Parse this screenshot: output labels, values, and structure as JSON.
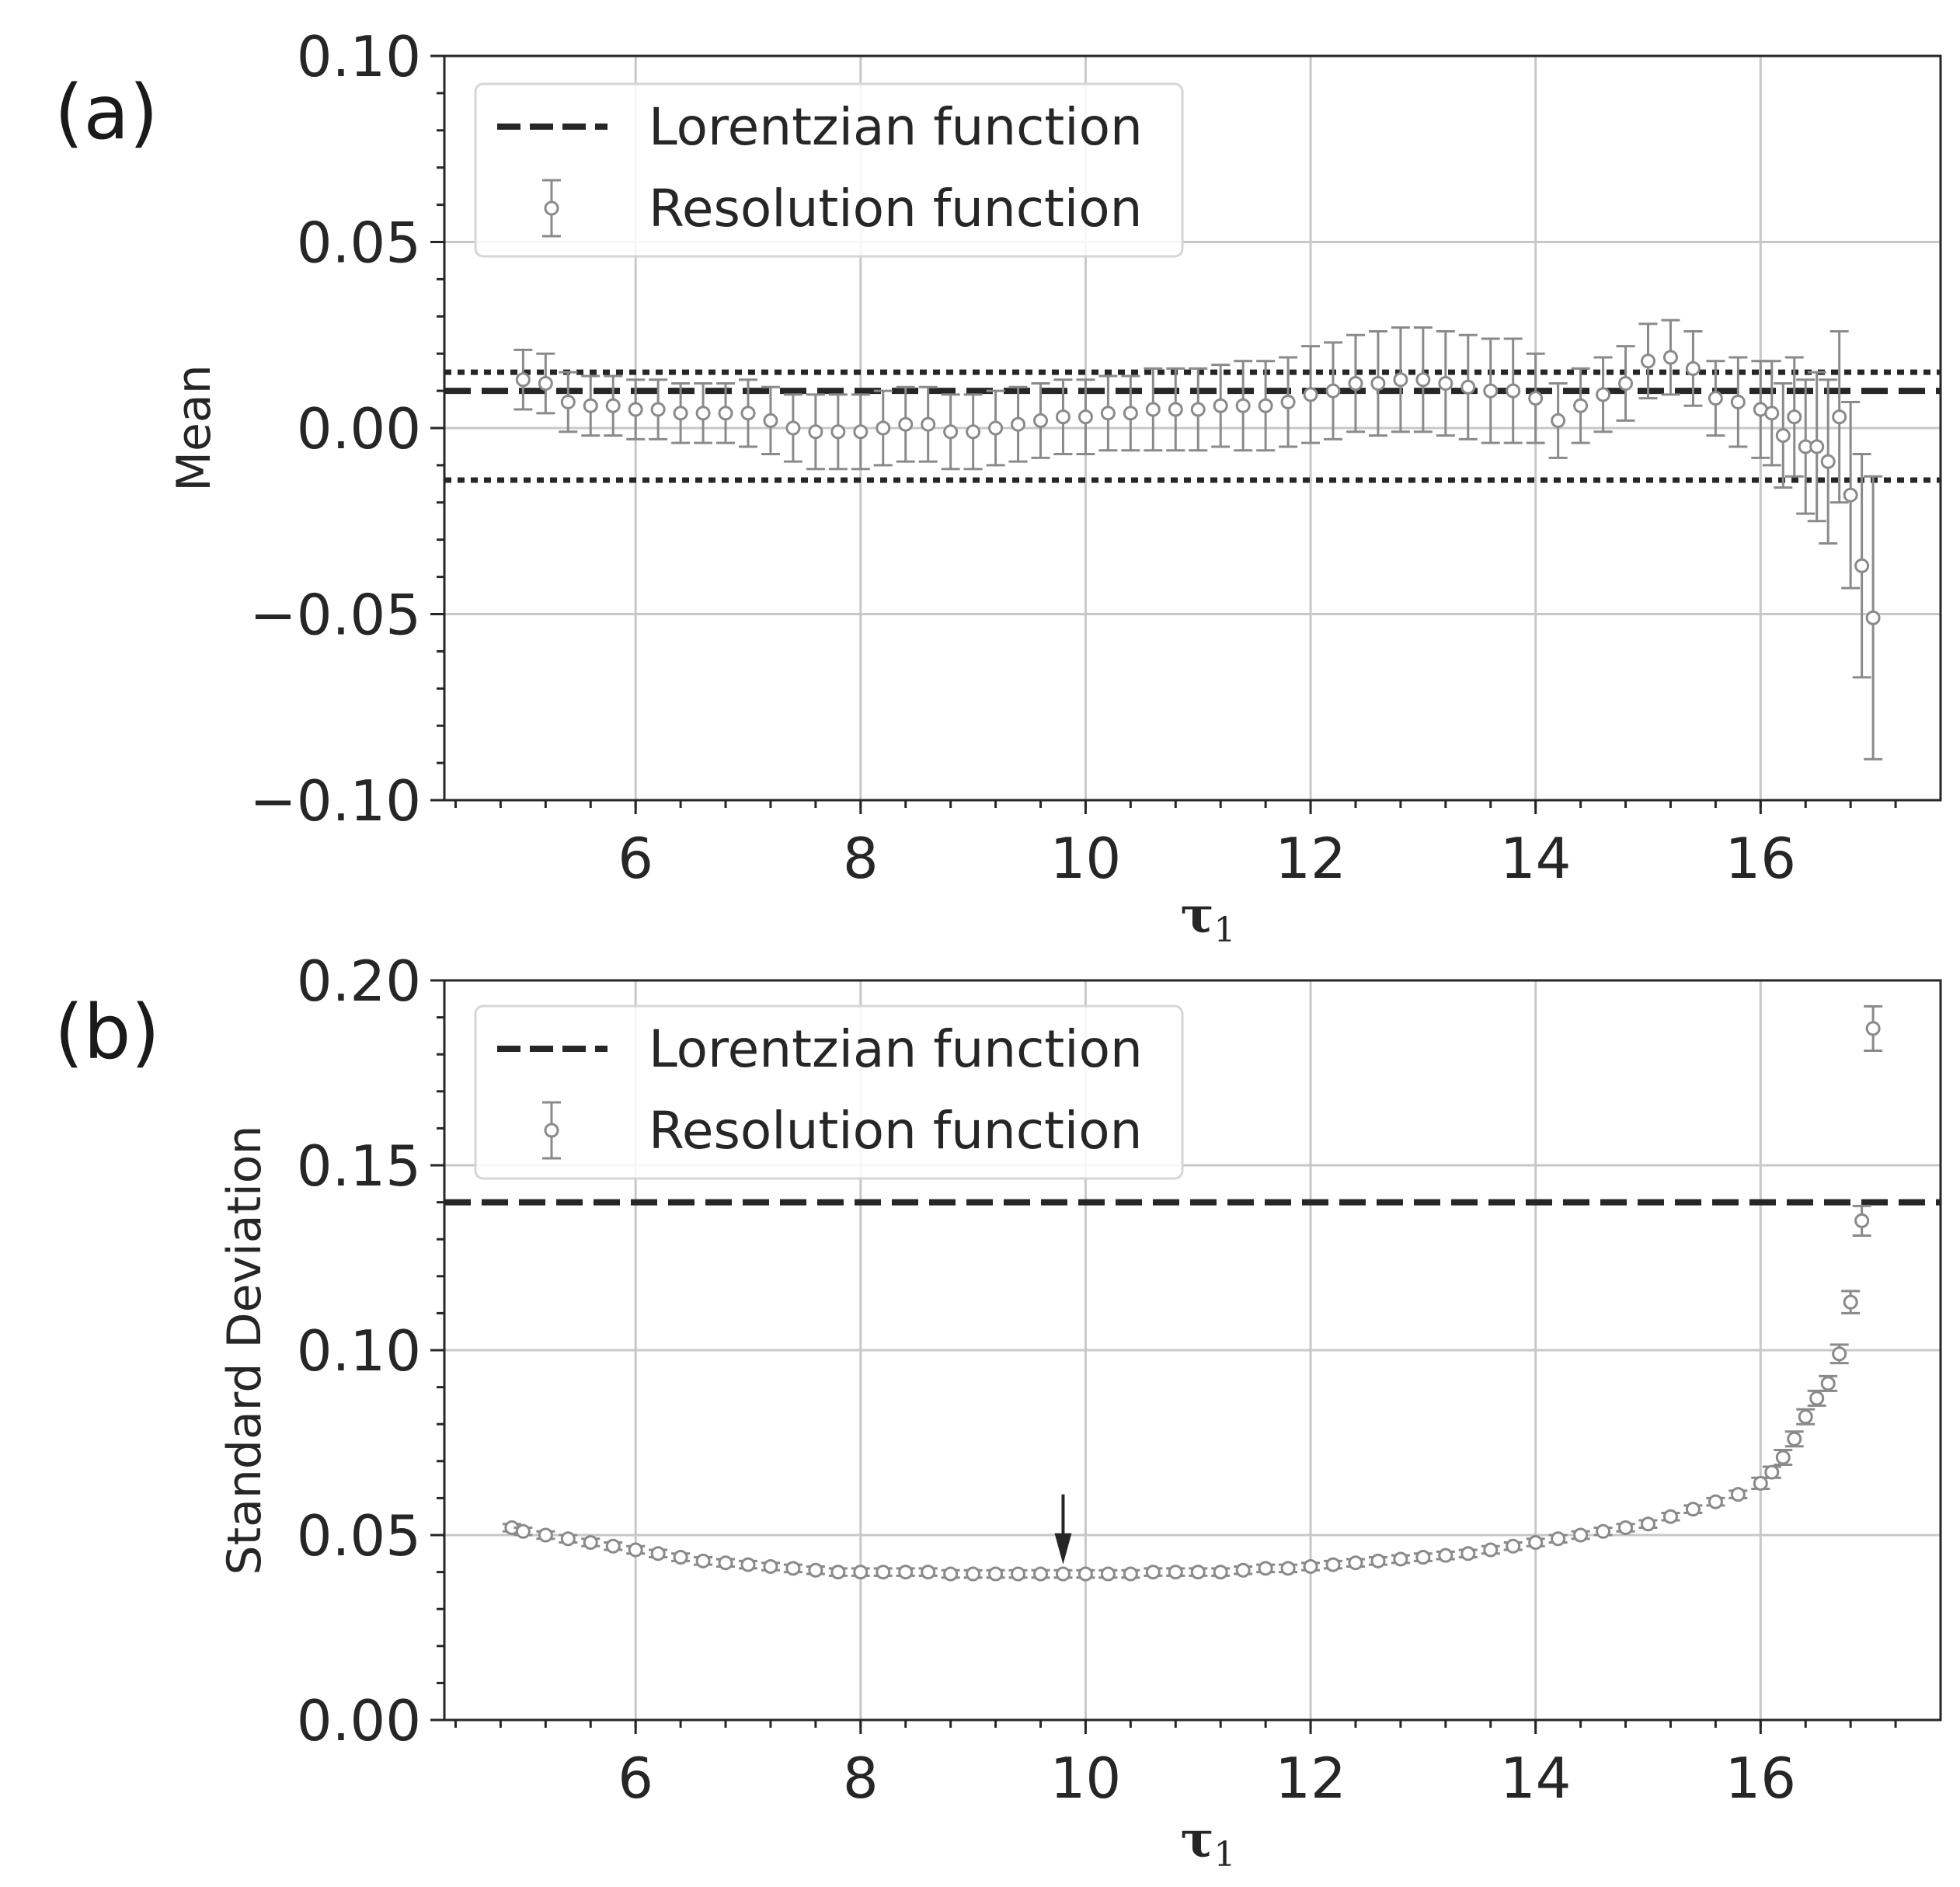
{
  "chart_data": [
    {
      "type": "scatter",
      "panel_label": "(a)",
      "xlabel_symbol": "τ",
      "xlabel_subscript": "1",
      "ylabel": "Mean",
      "xlim": [
        4.3,
        17.6
      ],
      "ylim": [
        -0.1,
        0.1
      ],
      "xticks": [
        6,
        8,
        10,
        12,
        14,
        16
      ],
      "xtick_labels": [
        "6",
        "8",
        "10",
        "12",
        "14",
        "16"
      ],
      "yticks": [
        0.1,
        0.05,
        0.0,
        -0.05,
        -0.1
      ],
      "ytick_labels": [
        "0.10",
        "0.05",
        "0.00",
        "−0.05",
        "−0.10"
      ],
      "grid": true,
      "legend_position": "upper-left",
      "legend": [
        "Lorentzian function",
        "Resolution function"
      ],
      "hlines": [
        {
          "y": 0.01,
          "style": "dashed",
          "series": "Lorentzian function"
        },
        {
          "y": 0.015,
          "style": "dotted"
        },
        {
          "y": -0.014,
          "style": "dotted"
        }
      ],
      "series": [
        {
          "name": "Resolution function",
          "x": [
            5.0,
            5.2,
            5.4,
            5.6,
            5.8,
            6.0,
            6.2,
            6.4,
            6.6,
            6.8,
            7.0,
            7.2,
            7.4,
            7.6,
            7.8,
            8.0,
            8.2,
            8.4,
            8.6,
            8.8,
            9.0,
            9.2,
            9.4,
            9.6,
            9.8,
            10.0,
            10.2,
            10.4,
            10.6,
            10.8,
            11.0,
            11.2,
            11.4,
            11.6,
            11.8,
            12.0,
            12.2,
            12.4,
            12.6,
            12.8,
            13.0,
            13.2,
            13.4,
            13.6,
            13.8,
            14.0,
            14.2,
            14.4,
            14.6,
            14.8,
            15.0,
            15.2,
            15.4,
            15.6,
            15.8,
            16.0,
            16.1,
            16.2,
            16.3,
            16.4,
            16.5,
            16.6,
            16.7,
            16.8,
            16.9,
            17.0
          ],
          "y": [
            0.013,
            0.012,
            0.007,
            0.006,
            0.006,
            0.005,
            0.005,
            0.004,
            0.004,
            0.004,
            0.004,
            0.002,
            0.0,
            -0.001,
            -0.001,
            -0.001,
            0.0,
            0.001,
            0.001,
            -0.001,
            -0.001,
            0.0,
            0.001,
            0.002,
            0.003,
            0.003,
            0.004,
            0.004,
            0.005,
            0.005,
            0.005,
            0.006,
            0.006,
            0.006,
            0.007,
            0.009,
            0.01,
            0.012,
            0.012,
            0.013,
            0.013,
            0.012,
            0.011,
            0.01,
            0.01,
            0.008,
            0.002,
            0.006,
            0.009,
            0.012,
            0.018,
            0.019,
            0.016,
            0.008,
            0.007,
            0.005,
            0.004,
            -0.002,
            0.003,
            -0.005,
            -0.005,
            -0.009,
            0.003,
            -0.018,
            -0.037,
            -0.051
          ],
          "yerr": [
            0.008,
            0.008,
            0.008,
            0.008,
            0.008,
            0.008,
            0.008,
            0.008,
            0.008,
            0.008,
            0.009,
            0.009,
            0.009,
            0.01,
            0.01,
            0.01,
            0.01,
            0.01,
            0.01,
            0.01,
            0.01,
            0.01,
            0.01,
            0.01,
            0.01,
            0.01,
            0.01,
            0.01,
            0.011,
            0.011,
            0.011,
            0.011,
            0.012,
            0.012,
            0.012,
            0.013,
            0.013,
            0.013,
            0.014,
            0.014,
            0.014,
            0.014,
            0.014,
            0.014,
            0.014,
            0.012,
            0.01,
            0.01,
            0.01,
            0.01,
            0.01,
            0.01,
            0.01,
            0.01,
            0.012,
            0.013,
            0.014,
            0.014,
            0.016,
            0.018,
            0.02,
            0.022,
            0.023,
            0.025,
            0.03,
            0.038
          ]
        }
      ]
    },
    {
      "type": "scatter",
      "panel_label": "(b)",
      "xlabel_symbol": "τ",
      "xlabel_subscript": "1",
      "ylabel": "Standard Deviation",
      "xlim": [
        4.3,
        17.6
      ],
      "ylim": [
        0.0,
        0.2
      ],
      "xticks": [
        6,
        8,
        10,
        12,
        14,
        16
      ],
      "xtick_labels": [
        "6",
        "8",
        "10",
        "12",
        "14",
        "16"
      ],
      "yticks": [
        0.2,
        0.15,
        0.1,
        0.05,
        0.0
      ],
      "ytick_labels": [
        "0.20",
        "0.15",
        "0.10",
        "0.05",
        "0.00"
      ],
      "grid": true,
      "legend_position": "upper-left",
      "legend": [
        "Lorentzian function",
        "Resolution function"
      ],
      "hlines": [
        {
          "y": 0.14,
          "style": "dashed",
          "series": "Lorentzian function"
        }
      ],
      "arrow_annotation": {
        "x": 9.8,
        "y": 0.04
      },
      "series": [
        {
          "name": "Resolution function",
          "x": [
            4.9,
            5.0,
            5.2,
            5.4,
            5.6,
            5.8,
            6.0,
            6.2,
            6.4,
            6.6,
            6.8,
            7.0,
            7.2,
            7.4,
            7.6,
            7.8,
            8.0,
            8.2,
            8.4,
            8.6,
            8.8,
            9.0,
            9.2,
            9.4,
            9.6,
            9.8,
            10.0,
            10.2,
            10.4,
            10.6,
            10.8,
            11.0,
            11.2,
            11.4,
            11.6,
            11.8,
            12.0,
            12.2,
            12.4,
            12.6,
            12.8,
            13.0,
            13.2,
            13.4,
            13.6,
            13.8,
            14.0,
            14.2,
            14.4,
            14.6,
            14.8,
            15.0,
            15.2,
            15.4,
            15.6,
            15.8,
            16.0,
            16.1,
            16.2,
            16.3,
            16.4,
            16.5,
            16.6,
            16.7,
            16.8,
            16.9,
            17.0
          ],
          "y": [
            0.052,
            0.051,
            0.05,
            0.049,
            0.048,
            0.047,
            0.046,
            0.045,
            0.044,
            0.043,
            0.0425,
            0.042,
            0.0415,
            0.041,
            0.0405,
            0.04,
            0.04,
            0.04,
            0.04,
            0.04,
            0.0395,
            0.0395,
            0.0395,
            0.0395,
            0.0395,
            0.0395,
            0.0395,
            0.0395,
            0.0395,
            0.04,
            0.04,
            0.04,
            0.04,
            0.0405,
            0.041,
            0.041,
            0.0415,
            0.042,
            0.0425,
            0.043,
            0.0435,
            0.044,
            0.0445,
            0.045,
            0.046,
            0.047,
            0.048,
            0.049,
            0.05,
            0.051,
            0.052,
            0.053,
            0.055,
            0.057,
            0.059,
            0.061,
            0.064,
            0.067,
            0.071,
            0.076,
            0.082,
            0.087,
            0.091,
            0.099,
            0.113,
            0.135,
            0.187
          ],
          "yerr": [
            0.001,
            0.001,
            0.001,
            0.001,
            0.001,
            0.001,
            0.001,
            0.001,
            0.001,
            0.001,
            0.001,
            0.001,
            0.001,
            0.001,
            0.001,
            0.001,
            0.001,
            0.001,
            0.001,
            0.001,
            0.001,
            0.001,
            0.001,
            0.001,
            0.001,
            0.001,
            0.001,
            0.001,
            0.001,
            0.001,
            0.001,
            0.001,
            0.001,
            0.001,
            0.001,
            0.001,
            0.001,
            0.001,
            0.001,
            0.001,
            0.001,
            0.001,
            0.001,
            0.001,
            0.001,
            0.001,
            0.001,
            0.001,
            0.001,
            0.001,
            0.001,
            0.001,
            0.001,
            0.001,
            0.001,
            0.001,
            0.0015,
            0.0015,
            0.002,
            0.002,
            0.002,
            0.002,
            0.002,
            0.0025,
            0.003,
            0.004,
            0.006
          ]
        }
      ]
    }
  ],
  "colors": {
    "marker": "#8a8a8a",
    "reference_line": "#262626",
    "grid": "#c8c8c8",
    "axis": "#262626",
    "legend_border": "#d6d6d6"
  }
}
